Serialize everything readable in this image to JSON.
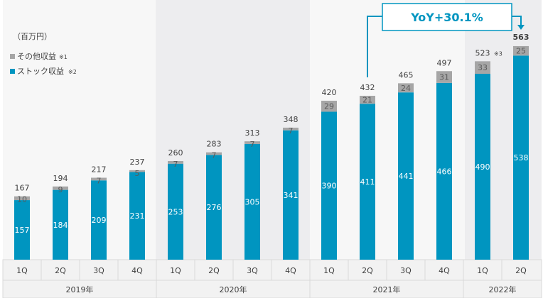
{
  "chart_data": {
    "type": "bar",
    "stacked": true,
    "unit_label": "（百万円）",
    "categories": [
      "1Q",
      "2Q",
      "3Q",
      "4Q",
      "1Q",
      "2Q",
      "3Q",
      "4Q",
      "1Q",
      "2Q",
      "3Q",
      "4Q",
      "1Q",
      "2Q"
    ],
    "years": [
      {
        "label": "2019年",
        "quarters": 4
      },
      {
        "label": "2020年",
        "quarters": 4
      },
      {
        "label": "2021年",
        "quarters": 4
      },
      {
        "label": "2022年",
        "quarters": 2
      }
    ],
    "series": [
      {
        "name": "ストック収益",
        "note": "※2",
        "color": "#0095c0",
        "values": [
          157,
          184,
          209,
          231,
          253,
          276,
          305,
          341,
          390,
          411,
          441,
          466,
          490,
          538
        ]
      },
      {
        "name": "その他収益",
        "note": "※1",
        "color": "#a6a6a6",
        "values": [
          10,
          9,
          7,
          5,
          7,
          7,
          7,
          7,
          29,
          21,
          24,
          31,
          33,
          25
        ]
      }
    ],
    "totals": [
      "167",
      "194",
      "217",
      "237",
      "260",
      "283",
      "313",
      "348",
      "420",
      "432",
      "465",
      "497",
      "523",
      "563"
    ],
    "total_notes": {
      "12": "※3"
    },
    "highlight_index": 13,
    "ylim": [
      0,
      600
    ],
    "annotation": {
      "text": "YoY+30.1%",
      "from_index": 9,
      "to_index": 13
    }
  }
}
